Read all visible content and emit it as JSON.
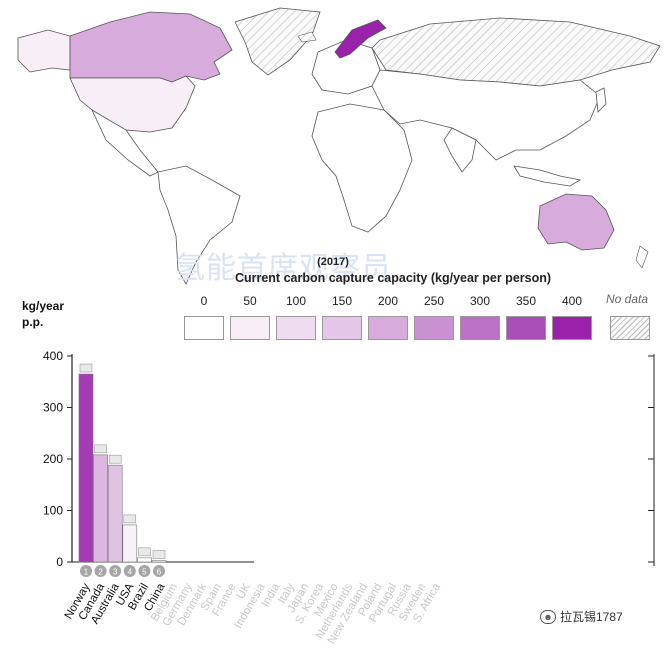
{
  "legend": {
    "year": "(2017)",
    "title": "Current carbon capture capacity (kg/year per person)",
    "scale": [
      {
        "label": "0",
        "color": "#ffffff"
      },
      {
        "label": "50",
        "color": "#f7eef8"
      },
      {
        "label": "100",
        "color": "#efdcf1"
      },
      {
        "label": "150",
        "color": "#e4c6e8"
      },
      {
        "label": "200",
        "color": "#d8abdd"
      },
      {
        "label": "250",
        "color": "#ca90d2"
      },
      {
        "label": "300",
        "color": "#bb71c6"
      },
      {
        "label": "350",
        "color": "#ab4fb8"
      },
      {
        "label": "400",
        "color": "#9a22ab"
      }
    ],
    "no_data": "No data"
  },
  "watermark": "氢能首席观察员",
  "watermark_bottom": "拉瓦锡1787",
  "chart_data": {
    "type": "bar",
    "ylabel": "kg/year\np.p.",
    "ylim": [
      0,
      400
    ],
    "yticks": [
      "0",
      "100",
      "200",
      "300",
      "400"
    ],
    "categories": [
      "Norway",
      "Canada",
      "Australia",
      "USA",
      "Brazil",
      "China",
      "Belgium",
      "Germany",
      "Denmark",
      "Spain",
      "France",
      "UK",
      "Indonesia",
      "India",
      "Italy",
      "Japan",
      "S. Korea",
      "Mexico",
      "Netherlands",
      "New Zealand",
      "Poland",
      "Portugal",
      "Russia",
      "Sweden",
      "S. Africa"
    ],
    "values": [
      365,
      208,
      188,
      72,
      8,
      3,
      0,
      0,
      0,
      0,
      0,
      0,
      0,
      0,
      0,
      0,
      0,
      0,
      0,
      0,
      0,
      0,
      0,
      0,
      0
    ],
    "ranks": [
      "1",
      "2",
      "3",
      "4",
      "5",
      "6"
    ],
    "bar_colors": [
      "#a43bb4",
      "#dcb8e1",
      "#e1c2e5",
      "#f9f1f9",
      "#ffffff",
      "#ffffff"
    ],
    "rank_badge_color": "#a6a6a6",
    "active_label_color": "#111111",
    "inactive_label_color": "#c8c8c8"
  },
  "map_colors": {
    "canada": "#d8abdd",
    "usa": "#f7eef8",
    "australia": "#d8abdd",
    "norway": "#9a22ab",
    "land": "#ffffff",
    "border": "#555555",
    "no_data_hatch": "#bbbbbb"
  }
}
